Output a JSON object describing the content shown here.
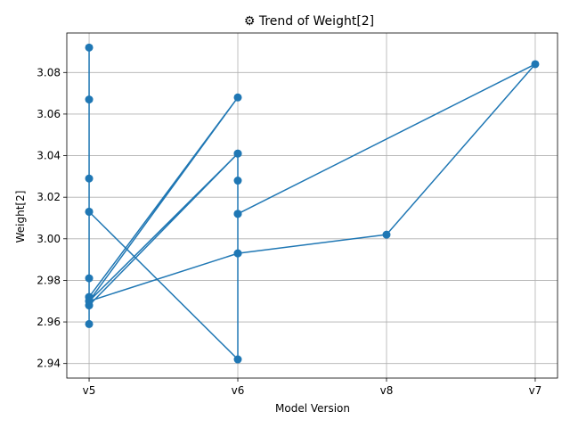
{
  "chart_data": {
    "type": "line",
    "title": "⚙ Trend of Weight[2]",
    "xlabel": "Model Version",
    "ylabel": "Weight[2]",
    "categories": [
      "v5",
      "v6",
      "v8",
      "v7"
    ],
    "ylim": [
      2.933,
      3.099
    ],
    "yticks": [
      2.94,
      2.96,
      2.98,
      3.0,
      3.02,
      3.04,
      3.06,
      3.08
    ],
    "ytick_labels": [
      "2.94",
      "2.96",
      "2.98",
      "3.00",
      "3.02",
      "3.04",
      "3.06",
      "3.08"
    ],
    "grid": true,
    "color": "#1f77b4",
    "series": [
      {
        "points": [
          [
            "v5",
            3.092
          ],
          [
            "v5",
            3.067
          ],
          [
            "v5",
            3.029
          ],
          [
            "v5",
            3.013
          ],
          [
            "v5",
            2.981
          ],
          [
            "v5",
            2.972
          ],
          [
            "v5",
            2.968
          ],
          [
            "v5",
            2.959
          ],
          [
            "v5",
            2.972
          ],
          [
            "v6",
            3.068
          ],
          [
            "v5",
            2.97
          ],
          [
            "v6",
            3.041
          ],
          [
            "v5",
            2.968
          ],
          [
            "v6",
            3.041
          ],
          [
            "v6",
            3.028
          ],
          [
            "v6",
            3.012
          ],
          [
            "v6",
            2.993
          ],
          [
            "v6",
            2.942
          ],
          [
            "v5",
            3.013
          ],
          [
            "v5",
            2.97
          ],
          [
            "v6",
            2.993
          ],
          [
            "v8",
            3.002
          ],
          [
            "v7",
            3.084
          ],
          [
            "v6",
            3.012
          ]
        ]
      }
    ]
  }
}
